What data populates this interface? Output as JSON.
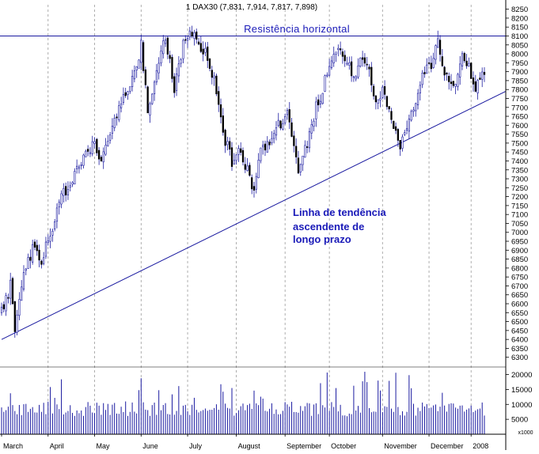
{
  "chart_data": {
    "type": "candlestick",
    "title": "1 DAX30 (7,831, 7,914, 7,817, 7,898)",
    "price_axis": {
      "ylim": [
        6250,
        8275
      ],
      "ticks": [
        6300,
        6350,
        6400,
        6450,
        6500,
        6550,
        6600,
        6650,
        6700,
        6750,
        6800,
        6850,
        6900,
        6950,
        7000,
        7050,
        7100,
        7150,
        7200,
        7250,
        7300,
        7350,
        7400,
        7450,
        7500,
        7550,
        7600,
        7650,
        7700,
        7750,
        7800,
        7850,
        7900,
        7950,
        8000,
        8050,
        8100,
        8150,
        8200,
        8250
      ]
    },
    "volume_axis": {
      "ylim": [
        0,
        22000
      ],
      "ticks": [
        5000,
        10000,
        15000,
        20000
      ],
      "unit_label": "x1000"
    },
    "months": [
      {
        "label": "March",
        "day": 0
      },
      {
        "label": "April",
        "day": 21
      },
      {
        "label": "May",
        "day": 42
      },
      {
        "label": "June",
        "day": 63
      },
      {
        "label": "July",
        "day": 84
      },
      {
        "label": "August",
        "day": 106
      },
      {
        "label": "September",
        "day": 128
      },
      {
        "label": "October",
        "day": 148
      },
      {
        "label": "November",
        "day": 172
      },
      {
        "label": "December",
        "day": 193
      },
      {
        "label": "2008",
        "day": 212
      }
    ],
    "trading_days": 219,
    "price_path": [
      [
        0,
        6550
      ],
      [
        4,
        6700
      ],
      [
        6,
        6460
      ],
      [
        10,
        6750
      ],
      [
        14,
        6900
      ],
      [
        18,
        6840
      ],
      [
        22,
        7000
      ],
      [
        27,
        7200
      ],
      [
        31,
        7280
      ],
      [
        36,
        7400
      ],
      [
        41,
        7500
      ],
      [
        45,
        7420
      ],
      [
        50,
        7600
      ],
      [
        55,
        7750
      ],
      [
        60,
        7900
      ],
      [
        63,
        8050
      ],
      [
        66,
        7700
      ],
      [
        70,
        7900
      ],
      [
        74,
        8100
      ],
      [
        78,
        7800
      ],
      [
        82,
        8050
      ],
      [
        86,
        8120
      ],
      [
        88,
        8080
      ],
      [
        92,
        8000
      ],
      [
        96,
        7850
      ],
      [
        100,
        7550
      ],
      [
        104,
        7400
      ],
      [
        108,
        7450
      ],
      [
        112,
        7300
      ],
      [
        114,
        7250
      ],
      [
        117,
        7450
      ],
      [
        121,
        7500
      ],
      [
        125,
        7600
      ],
      [
        129,
        7650
      ],
      [
        132,
        7450
      ],
      [
        134,
        7350
      ],
      [
        138,
        7500
      ],
      [
        142,
        7700
      ],
      [
        145,
        7800
      ],
      [
        148,
        7950
      ],
      [
        152,
        8050
      ],
      [
        156,
        7960
      ],
      [
        159,
        7850
      ],
      [
        163,
        8000
      ],
      [
        166,
        7900
      ],
      [
        169,
        7700
      ],
      [
        172,
        7800
      ],
      [
        176,
        7650
      ],
      [
        180,
        7500
      ],
      [
        183,
        7550
      ],
      [
        186,
        7700
      ],
      [
        190,
        7900
      ],
      [
        194,
        7950
      ],
      [
        197,
        8050
      ],
      [
        200,
        7900
      ],
      [
        204,
        7800
      ],
      [
        208,
        8000
      ],
      [
        210,
        7950
      ],
      [
        214,
        7800
      ],
      [
        217,
        7880
      ]
    ],
    "annotations": {
      "resistance_label": "Resistência horizontal",
      "resistance_level": 8100,
      "trend_label_lines": [
        "Linha de tendência",
        "ascendente de",
        "longo prazo"
      ],
      "trend_line": {
        "start_day": 0,
        "start_price": 6400,
        "end_day": 219,
        "end_price": 7790
      }
    },
    "colors": {
      "candle": "#1a1aa0",
      "bearish_fill": "#000000",
      "lines": "#1a1aa0",
      "annotation_text": "#1a1ab8",
      "grid": "#9a9a9a",
      "volume": "#1a1aa0"
    },
    "grid": "vertical dashed at month starts"
  }
}
